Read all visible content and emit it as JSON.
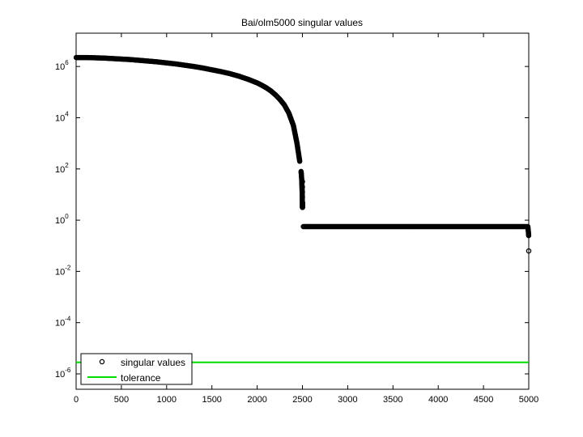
{
  "chart_data": {
    "type": "scatter",
    "title": "Bai/olm5000 singular values",
    "xlabel": "",
    "ylabel": "",
    "xlim": [
      0,
      5000
    ],
    "ylim_log10": [
      -6.6,
      7.3
    ],
    "yscale": "log",
    "grid": false,
    "x_ticks": [
      {
        "value": 0,
        "label": "0"
      },
      {
        "value": 500,
        "label": "500"
      },
      {
        "value": 1000,
        "label": "1000"
      },
      {
        "value": 1500,
        "label": "1500"
      },
      {
        "value": 2000,
        "label": "2000"
      },
      {
        "value": 2500,
        "label": "2500"
      },
      {
        "value": 3000,
        "label": "3000"
      },
      {
        "value": 3500,
        "label": "3500"
      },
      {
        "value": 4000,
        "label": "4000"
      },
      {
        "value": 4500,
        "label": "4500"
      },
      {
        "value": 5000,
        "label": "5000"
      }
    ],
    "y_ticks": [
      {
        "exp": 6,
        "base": "10",
        "sup": "6"
      },
      {
        "exp": 4,
        "base": "10",
        "sup": "4"
      },
      {
        "exp": 2,
        "base": "10",
        "sup": "2"
      },
      {
        "exp": 0,
        "base": "10",
        "sup": "0"
      },
      {
        "exp": -2,
        "base": "10",
        "sup": "-2"
      },
      {
        "exp": -4,
        "base": "10",
        "sup": "-4"
      },
      {
        "exp": -6,
        "base": "10",
        "sup": "-6"
      }
    ],
    "series": [
      {
        "name": "singular values",
        "marker": "circle",
        "color": "#000000",
        "points_log10": [
          [
            1,
            6.35
          ],
          [
            100,
            6.35
          ],
          [
            200,
            6.34
          ],
          [
            300,
            6.33
          ],
          [
            400,
            6.31
          ],
          [
            500,
            6.29
          ],
          [
            600,
            6.27
          ],
          [
            700,
            6.24
          ],
          [
            800,
            6.21
          ],
          [
            900,
            6.18
          ],
          [
            1000,
            6.14
          ],
          [
            1100,
            6.1
          ],
          [
            1200,
            6.05
          ],
          [
            1300,
            6.0
          ],
          [
            1400,
            5.94
          ],
          [
            1500,
            5.87
          ],
          [
            1600,
            5.8
          ],
          [
            1700,
            5.72
          ],
          [
            1800,
            5.62
          ],
          [
            1900,
            5.5
          ],
          [
            2000,
            5.36
          ],
          [
            2050,
            5.27
          ],
          [
            2100,
            5.17
          ],
          [
            2150,
            5.05
          ],
          [
            2200,
            4.9
          ],
          [
            2250,
            4.72
          ],
          [
            2300,
            4.5
          ],
          [
            2350,
            4.18
          ],
          [
            2400,
            3.7
          ],
          [
            2440,
            3.0
          ],
          [
            2470,
            2.3
          ],
          [
            2485,
            1.9
          ],
          [
            2490,
            1.7
          ],
          [
            2493,
            1.5
          ],
          [
            2495,
            1.3
          ],
          [
            2497,
            1.1
          ],
          [
            2498,
            0.9
          ],
          [
            2499,
            0.7
          ],
          [
            2500,
            0.5
          ],
          [
            2501,
            0.7
          ],
          [
            2502,
            0.5
          ],
          [
            2510,
            -0.25
          ],
          [
            2600,
            -0.25
          ],
          [
            2800,
            -0.25
          ],
          [
            3000,
            -0.25
          ],
          [
            3200,
            -0.25
          ],
          [
            3400,
            -0.25
          ],
          [
            3600,
            -0.25
          ],
          [
            3800,
            -0.25
          ],
          [
            4000,
            -0.25
          ],
          [
            4200,
            -0.25
          ],
          [
            4400,
            -0.25
          ],
          [
            4600,
            -0.25
          ],
          [
            4800,
            -0.25
          ],
          [
            4990,
            -0.25
          ],
          [
            4997,
            -0.5
          ],
          [
            4999,
            -0.6
          ],
          [
            5000,
            -1.2
          ]
        ]
      },
      {
        "name": "tolerance",
        "marker": "line",
        "color": "#00dd00",
        "value_log10": -5.55
      }
    ],
    "legend": {
      "placement": "bottom-left",
      "entries": [
        "singular values",
        "tolerance"
      ]
    }
  }
}
